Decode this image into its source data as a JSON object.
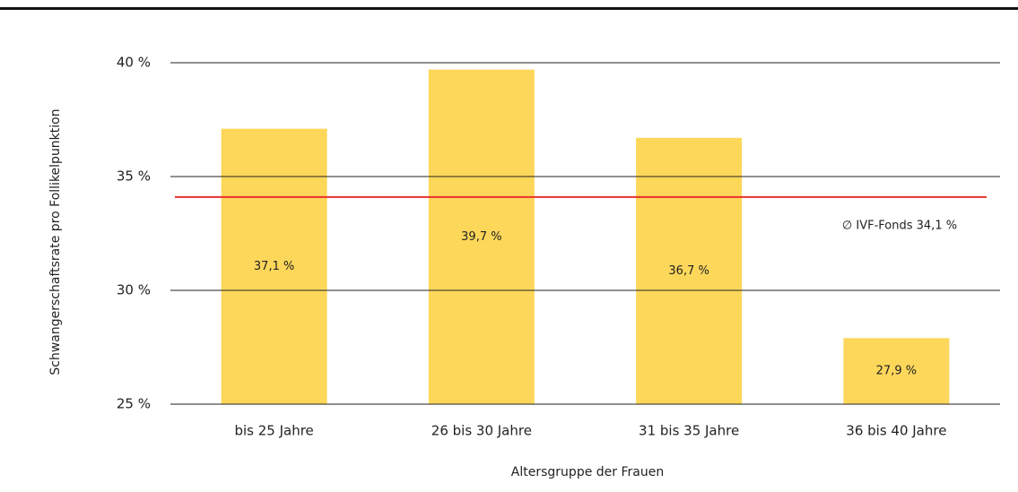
{
  "chart_data": {
    "type": "bar",
    "categories": [
      "bis 25 Jahre",
      "26 bis 30 Jahre",
      "31 bis 35 Jahre",
      "36 bis 40 Jahre"
    ],
    "values": [
      37.1,
      39.7,
      36.7,
      27.9
    ],
    "value_labels": [
      "37,1 %",
      "39,7 %",
      "36,7 %",
      "27,9 %"
    ],
    "color": "#fdd75a",
    "ylim": [
      25,
      40
    ],
    "yticks": [
      {
        "value": 25,
        "label": "25 %"
      },
      {
        "value": 30,
        "label": "30 %"
      },
      {
        "value": 35,
        "label": "35 %"
      },
      {
        "value": 40,
        "label": "40 %"
      }
    ],
    "grid": true,
    "ylabel": "Schwangerschaftsrate pro Follikelpunktion",
    "xlabel": "Altersgruppe der Frauen",
    "reference_line": {
      "value": 34.1,
      "label": "∅ IVF-Fonds 34,1 %",
      "color": "#e8312f"
    }
  }
}
